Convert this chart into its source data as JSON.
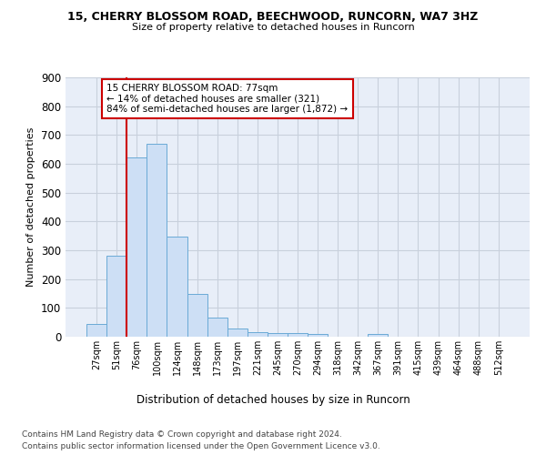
{
  "title1": "15, CHERRY BLOSSOM ROAD, BEECHWOOD, RUNCORN, WA7 3HZ",
  "title2": "Size of property relative to detached houses in Runcorn",
  "xlabel": "Distribution of detached houses by size in Runcorn",
  "ylabel": "Number of detached properties",
  "footnote1": "Contains HM Land Registry data © Crown copyright and database right 2024.",
  "footnote2": "Contains public sector information licensed under the Open Government Licence v3.0.",
  "bar_labels": [
    "27sqm",
    "51sqm",
    "76sqm",
    "100sqm",
    "124sqm",
    "148sqm",
    "173sqm",
    "197sqm",
    "221sqm",
    "245sqm",
    "270sqm",
    "294sqm",
    "318sqm",
    "342sqm",
    "367sqm",
    "391sqm",
    "415sqm",
    "439sqm",
    "464sqm",
    "488sqm",
    "512sqm"
  ],
  "bar_values": [
    43,
    280,
    622,
    670,
    348,
    148,
    65,
    30,
    15,
    12,
    12,
    10,
    0,
    0,
    10,
    0,
    0,
    0,
    0,
    0,
    0
  ],
  "bar_color": "#cddff5",
  "bar_edge_color": "#6aaad6",
  "ylim": [
    0,
    900
  ],
  "yticks": [
    0,
    100,
    200,
    300,
    400,
    500,
    600,
    700,
    800,
    900
  ],
  "vline_bar_index": 2,
  "vline_color": "#cc0000",
  "annotation_line1": "15 CHERRY BLOSSOM ROAD: 77sqm",
  "annotation_line2": "← 14% of detached houses are smaller (321)",
  "annotation_line3": "84% of semi-detached houses are larger (1,872) →",
  "annotation_box_facecolor": "#ffffff",
  "annotation_box_edgecolor": "#cc0000",
  "plot_bg_color": "#e8eef8",
  "fig_bg_color": "#ffffff",
  "grid_color": "#c8d0dc"
}
